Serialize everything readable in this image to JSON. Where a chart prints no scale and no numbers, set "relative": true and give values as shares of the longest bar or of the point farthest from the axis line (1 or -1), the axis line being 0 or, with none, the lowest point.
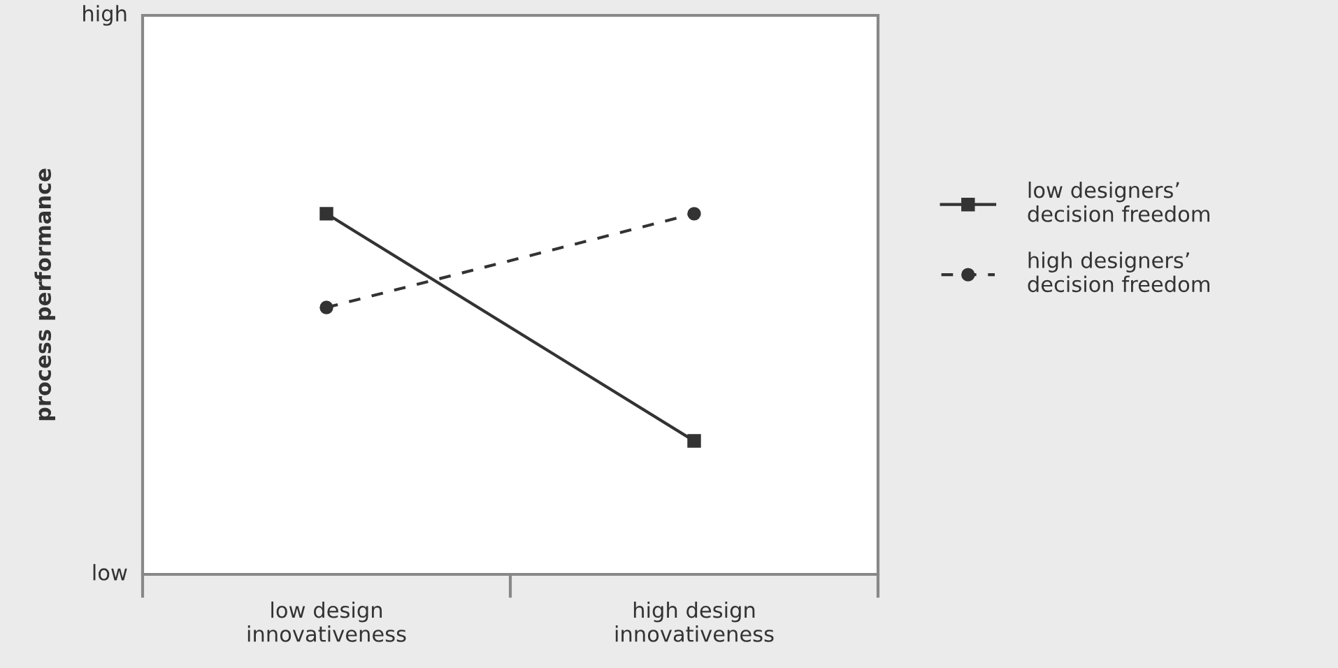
{
  "chart_data": {
    "type": "line",
    "relative": true,
    "ylabel": "process performance",
    "categories": [
      "low design\ninnovativeness",
      "high design\ninnovativeness"
    ],
    "series": [
      {
        "name": "low designers’\ndecision freedom",
        "color": "#333333",
        "values": [
          1,
          0.37
        ],
        "marker": "square",
        "line_style": "solid"
      },
      {
        "name": "high designers’\ndecision freedom",
        "color": "#333333",
        "values": [
          0.74,
          1
        ],
        "marker": "circle",
        "line_style": "dashed"
      }
    ],
    "annotations": [
      "high",
      "low"
    ],
    "grid": false,
    "legend": "right"
  }
}
